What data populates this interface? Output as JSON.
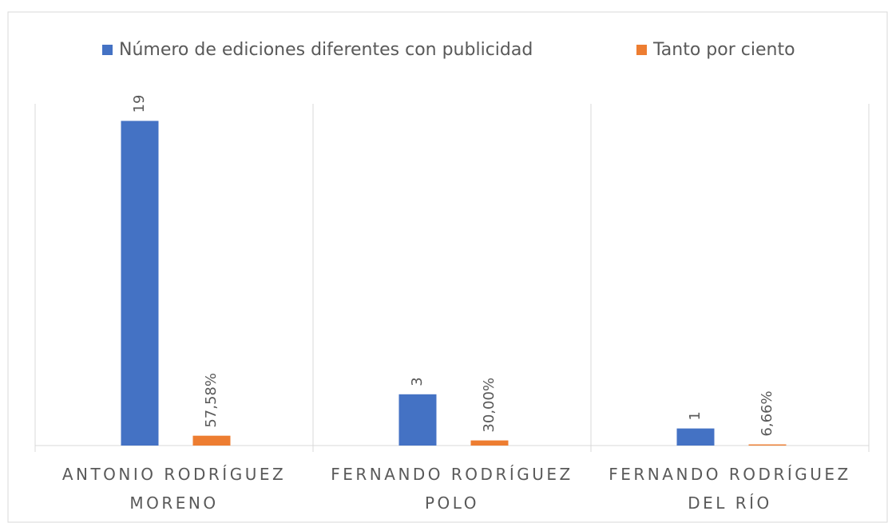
{
  "chart_data": {
    "type": "bar",
    "categories": [
      "ANTONIO RODRÍGUEZ MORENO",
      "FERNANDO RODRÍGUEZ POLO",
      "FERNANDO RODRÍGUEZ DEL RÍO"
    ],
    "series": [
      {
        "name": "Número de ediciones diferentes con publicidad",
        "color": "#4472c4",
        "values": [
          19,
          3,
          1
        ]
      },
      {
        "name": "Tanto por ciento",
        "color": "#ed7d31",
        "values": [
          0.5758,
          0.3,
          0.0666
        ],
        "value_labels": [
          "57,58%",
          "30,00%",
          "6,66%"
        ]
      }
    ],
    "ylim": [
      0,
      20
    ]
  }
}
